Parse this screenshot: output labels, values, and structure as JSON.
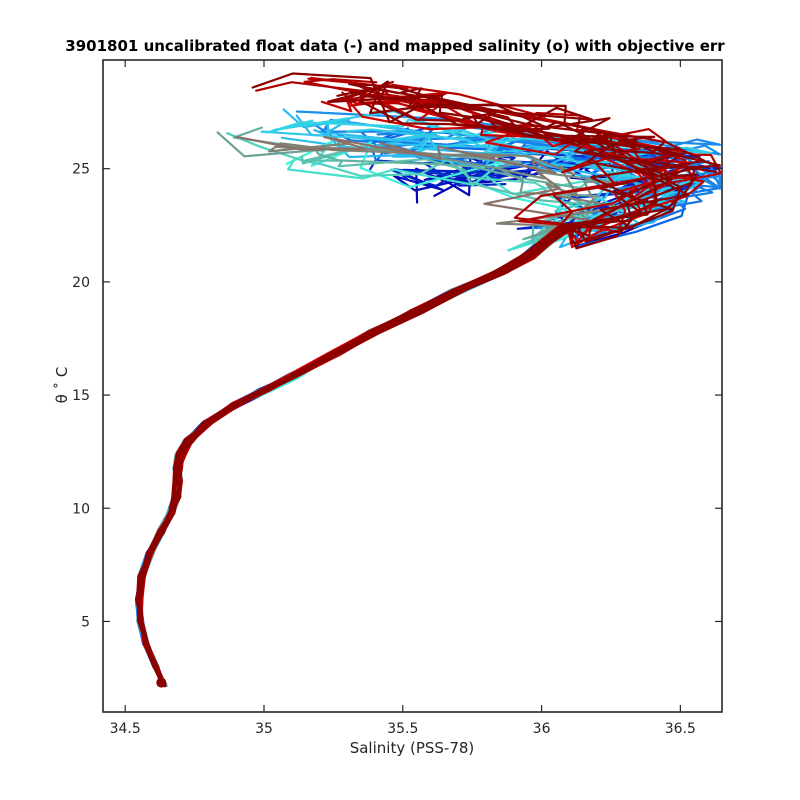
{
  "chart_data": {
    "type": "line",
    "title": "3901801 uncalibrated float data (-) and mapped salinity (o) with objective err",
    "xlabel": "Salinity (PSS-78)",
    "ylabel": "θ ˚ C",
    "xlim": [
      34.42,
      36.65
    ],
    "ylim": [
      1.0,
      29.8
    ],
    "x_ticks": [
      34.5,
      35,
      35.5,
      36,
      36.5
    ],
    "y_ticks": [
      5,
      10,
      15,
      20,
      25
    ],
    "x_tick_labels": [
      "34.5",
      "35",
      "35.5",
      "36",
      "36.5"
    ],
    "y_tick_labels": [
      "5",
      "10",
      "15",
      "20",
      "25"
    ],
    "grid": false,
    "legend": "none",
    "colormap": "jet (profile order, early = blue, late = dark red)",
    "colors": {
      "early": "#0000b4",
      "blue": "#0a64e6",
      "light_blue": "#28b4f0",
      "cyan": "#3cf0dc",
      "red": "#d20000",
      "late": "#8c0000"
    },
    "base_profile": {
      "x": [
        34.64,
        34.61,
        34.575,
        34.555,
        34.55,
        34.56,
        34.59,
        34.63,
        34.665,
        34.685,
        34.69,
        34.69,
        34.7,
        34.73,
        34.8,
        34.9,
        35.0,
        35.1,
        35.25,
        35.4,
        35.55,
        35.7,
        35.85,
        35.95,
        36.02,
        36.1
      ],
      "y": [
        2.2,
        3.0,
        4.0,
        5.0,
        6.0,
        7.0,
        8.0,
        9.0,
        9.8,
        10.5,
        11.2,
        11.8,
        12.4,
        13.0,
        13.8,
        14.6,
        15.2,
        15.8,
        16.8,
        17.8,
        18.7,
        19.6,
        20.4,
        21.1,
        21.8,
        22.5
      ]
    },
    "series": [
      {
        "color": "#0000b4",
        "values": {
          "x": [
            36.1,
            36.25,
            36.35,
            36.42,
            36.4,
            36.3,
            36.1,
            35.9,
            35.75,
            35.65,
            35.6
          ],
          "y": [
            22.5,
            23.1,
            23.7,
            24.3,
            24.8,
            25.1,
            25.2,
            25.1,
            24.9,
            24.7,
            24.5
          ]
        }
      },
      {
        "color": "#0a64e6",
        "values": {
          "x": [
            36.1,
            36.3,
            36.45,
            36.52,
            36.48,
            36.35,
            36.15,
            35.95,
            35.7,
            35.5,
            35.35
          ],
          "y": [
            22.3,
            23.0,
            23.7,
            24.4,
            25.0,
            25.5,
            25.8,
            26.0,
            26.2,
            26.4,
            26.5
          ]
        }
      },
      {
        "color": "#28b4f0",
        "values": {
          "x": [
            36.05,
            36.2,
            36.35,
            36.45,
            36.4,
            36.25,
            36.0,
            35.75,
            35.5,
            35.3,
            35.15
          ],
          "y": [
            22.4,
            23.0,
            23.6,
            24.2,
            24.8,
            25.3,
            25.7,
            26.0,
            26.3,
            26.6,
            26.8
          ]
        }
      },
      {
        "color": "#3cf0dc",
        "values": {
          "x": [
            35.95,
            36.05,
            36.1,
            36.05,
            35.9,
            35.7,
            35.5,
            35.3,
            35.15,
            35.05
          ],
          "y": [
            22.0,
            22.8,
            23.5,
            24.1,
            24.6,
            25.0,
            25.3,
            25.5,
            25.7,
            26.0
          ]
        }
      },
      {
        "color": "#d20000",
        "values": {
          "x": [
            36.1,
            36.25,
            36.38,
            36.45,
            36.4,
            36.25,
            36.05,
            35.85,
            35.6,
            35.4,
            35.3
          ],
          "y": [
            22.4,
            23.2,
            24.0,
            24.8,
            25.5,
            26.2,
            26.8,
            27.3,
            27.8,
            28.2,
            28.5
          ]
        }
      },
      {
        "color": "#8c0000",
        "values": {
          "x": [
            36.15,
            36.3,
            36.4,
            36.45,
            36.42,
            36.3,
            36.1,
            35.9,
            35.7,
            35.5,
            35.35
          ],
          "y": [
            22.3,
            23.0,
            23.8,
            24.6,
            25.4,
            26.0,
            26.6,
            27.2,
            27.6,
            28.0,
            28.3
          ]
        }
      }
    ],
    "mapped_salinity_marker": {
      "x": 34.63,
      "y": 2.3
    }
  }
}
